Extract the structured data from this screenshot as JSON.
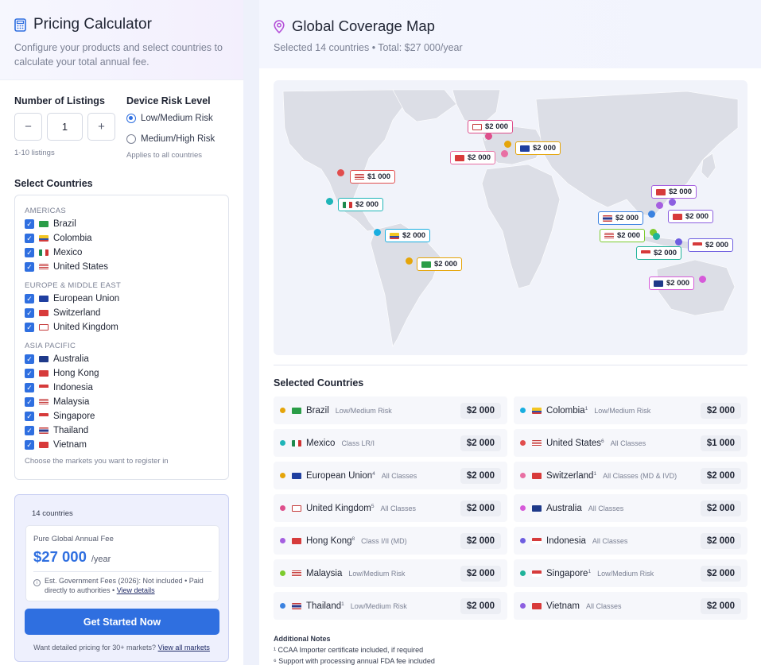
{
  "left": {
    "title": "Pricing Calculator",
    "subtitle": "Configure your products and select countries to calculate your total annual fee.",
    "listings": {
      "label": "Number of Listings",
      "minus": "−",
      "value": "1",
      "plus": "+",
      "hint": "1-10 listings"
    },
    "risk": {
      "label": "Device Risk Level",
      "options": [
        "Low/Medium Risk",
        "Medium/High Risk"
      ],
      "selected": "Low/Medium Risk",
      "hint": "Applies to all countries"
    },
    "select_title": "Select Countries",
    "groups": [
      {
        "name": "AMERICAS",
        "items": [
          "Brazil",
          "Colombia",
          "Mexico",
          "United States"
        ]
      },
      {
        "name": "EUROPE & MIDDLE EAST",
        "items": [
          "European Union",
          "Switzerland",
          "United Kingdom"
        ]
      },
      {
        "name": "ASIA PACIFIC",
        "items": [
          "Australia",
          "Hong Kong",
          "Indonesia",
          "Malaysia",
          "Singapore",
          "Thailand",
          "Vietnam"
        ]
      }
    ],
    "box_hint": "Choose the markets you want to register in",
    "summary": {
      "count": "14 countries",
      "fee_label": "Pure Global Annual Fee",
      "fee_amount": "$27 000",
      "fee_period": "/year",
      "note": "Est. Government Fees (2026): Not included • Paid directly to authorities • ",
      "note_link": "View details",
      "cta": "Get Started Now",
      "cta_hint": "Want detailed pricing for 30+ markets? ",
      "cta_link": "View all markets"
    }
  },
  "right": {
    "title": "Global Coverage Map",
    "subtitle": "Selected 14 countries • Total: $27 000/year",
    "map_labels": [
      {
        "code": "GB",
        "price": "$2 000"
      },
      {
        "code": "EU",
        "price": "$2 000"
      },
      {
        "code": "CH",
        "price": "$2 000"
      },
      {
        "code": "US",
        "price": "$1 000"
      },
      {
        "code": "MX",
        "price": "$2 000"
      },
      {
        "code": "CO",
        "price": "$2 000"
      },
      {
        "code": "BR",
        "price": "$2 000"
      },
      {
        "code": "HK",
        "price": "$2 000"
      },
      {
        "code": "TH",
        "price": "$2 000"
      },
      {
        "code": "VN",
        "price": "$2 000"
      },
      {
        "code": "MY",
        "price": "$2 000"
      },
      {
        "code": "ID",
        "price": "$2 000"
      },
      {
        "code": "SG",
        "price": "$2 000"
      },
      {
        "code": "AU",
        "price": "$2 000"
      }
    ],
    "selected_title": "Selected Countries",
    "cards": [
      {
        "name": "Brazil",
        "sup": "",
        "risk": "Low/Medium Risk",
        "price": "$2 000",
        "code": "BR"
      },
      {
        "name": "Colombia",
        "sup": "1",
        "risk": "Low/Medium Risk",
        "price": "$2 000",
        "code": "CO"
      },
      {
        "name": "Mexico",
        "sup": "",
        "risk": "Class LR/I",
        "price": "$2 000",
        "code": "MX"
      },
      {
        "name": "United States",
        "sup": "6",
        "risk": "All Classes",
        "price": "$1 000",
        "code": "US"
      },
      {
        "name": "European Union",
        "sup": "4",
        "risk": "All Classes",
        "price": "$2 000",
        "code": "EU"
      },
      {
        "name": "Switzerland",
        "sup": "1",
        "risk": "All Classes (MD & IVD)",
        "price": "$2 000",
        "code": "CH"
      },
      {
        "name": "United Kingdom",
        "sup": "5",
        "risk": "All Classes",
        "price": "$2 000",
        "code": "GB"
      },
      {
        "name": "Australia",
        "sup": "",
        "risk": "All Classes",
        "price": "$2 000",
        "code": "AU"
      },
      {
        "name": "Hong Kong",
        "sup": "8",
        "risk": "Class I/II (MD)",
        "price": "$2 000",
        "code": "HK"
      },
      {
        "name": "Indonesia",
        "sup": "",
        "risk": "All Classes",
        "price": "$2 000",
        "code": "ID"
      },
      {
        "name": "Malaysia",
        "sup": "",
        "risk": "Low/Medium Risk",
        "price": "$2 000",
        "code": "MY"
      },
      {
        "name": "Singapore",
        "sup": "1",
        "risk": "Low/Medium Risk",
        "price": "$2 000",
        "code": "SG"
      },
      {
        "name": "Thailand",
        "sup": "1",
        "risk": "Low/Medium Risk",
        "price": "$2 000",
        "code": "TH"
      },
      {
        "name": "Vietnam",
        "sup": "",
        "risk": "All Classes",
        "price": "$2 000",
        "code": "VN"
      }
    ],
    "notes_title": "Additional Notes",
    "notes": [
      "¹ CCAA Importer certificate included, if required",
      "⁶ Support with processing annual FDA fee included"
    ]
  },
  "colors": {
    "accent": "#2f6fe0",
    "BR": "#e5a50a",
    "CO": "#19aee0",
    "MX": "#1fb5b8",
    "US": "#e14d4d",
    "EU": "#e5a50a",
    "CH": "#e86fa3",
    "GB": "#de4f8c",
    "AU": "#d65ad9",
    "HK": "#a55fe0",
    "ID": "#6e5ee0",
    "MY": "#7ccb2e",
    "SG": "#1fb39a",
    "TH": "#3b82e0",
    "VN": "#8c5fe0"
  }
}
